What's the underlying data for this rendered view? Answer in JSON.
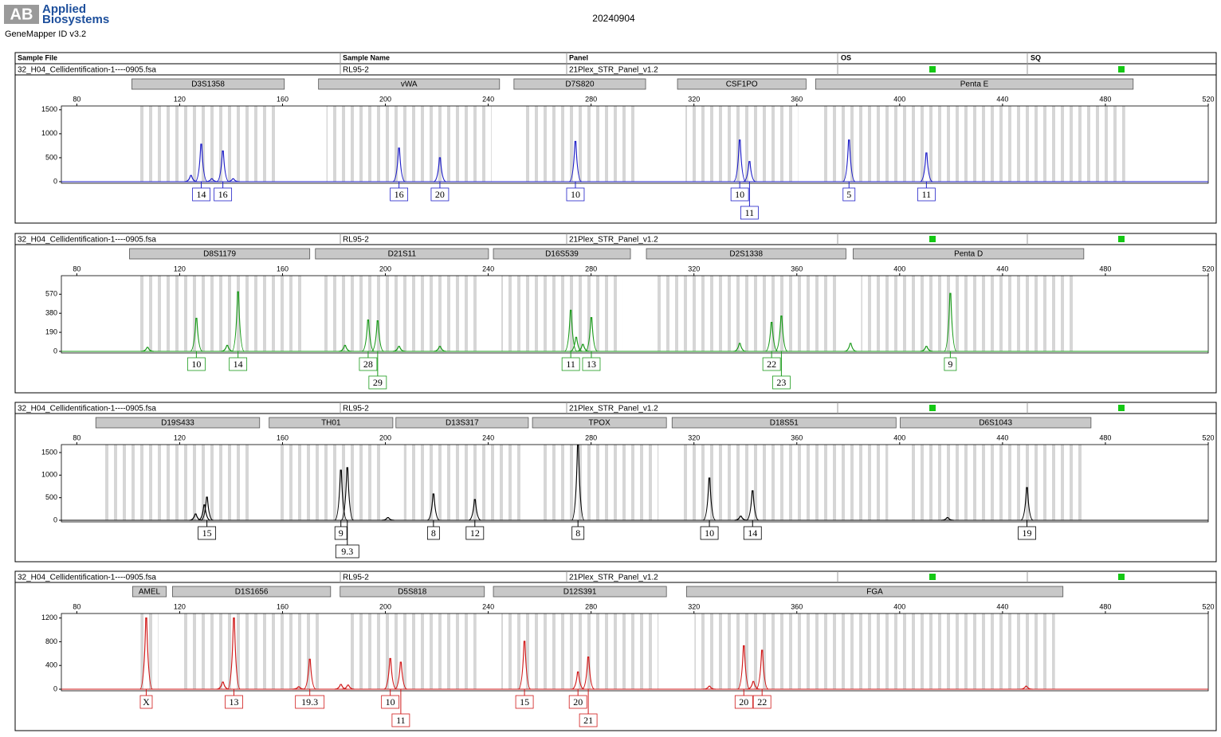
{
  "header": {
    "logo_mark": "AB",
    "logo": [
      "Applied",
      "Biosystems"
    ],
    "software": "GeneMapper ID v3.2",
    "date": "20240904",
    "columns": [
      "Sample File",
      "Sample Name",
      "Panel",
      "OS",
      "SQ"
    ]
  },
  "chart_data": [
    {
      "type": "line",
      "sample_file": "32_H04_Cellidentification-1----0905.fsa",
      "sample_name": "RL95-2",
      "panel": "21Plex_STR_Panel_v1.2",
      "loci": [
        {
          "name": "D3S1358",
          "start": 101.4,
          "end": 160.7
        },
        {
          "name": "vWA",
          "start": 174.0,
          "end": 244.4
        },
        {
          "name": "D7S820",
          "start": 250.0,
          "end": 301.2
        },
        {
          "name": "CSF1PO",
          "start": 313.6,
          "end": 363.6
        },
        {
          "name": "Penta E",
          "start": 367.3,
          "end": 490.8
        }
      ],
      "xlim": [
        74,
        520
      ],
      "xticks": [
        80,
        120,
        160,
        200,
        240,
        280,
        320,
        360,
        400,
        440,
        480,
        520
      ],
      "ylim": [
        0,
        1580
      ],
      "yticks": [
        0,
        500,
        1000,
        1500
      ],
      "series": [
        {
          "color": "#1f1fc8",
          "x": [
            124.4,
            128.4,
            132.5,
            136.8,
            140.8,
            205.3,
            221.2,
            273.9,
            337.8,
            341.6,
            380.3,
            410.4
          ],
          "values": [
            130,
            783,
            60,
            640,
            60,
            700,
            500,
            840,
            870,
            420,
            870,
            600
          ],
          "alleles": [
            null,
            "14",
            null,
            "16",
            null,
            "16",
            "20",
            "10",
            "10",
            "11",
            "5",
            "11"
          ]
        }
      ]
    },
    {
      "type": "line",
      "sample_file": "32_H04_Cellidentification-1----0905.fsa",
      "sample_name": "RL95-2",
      "panel": "21Plex_STR_Panel_v1.2",
      "loci": [
        {
          "name": "D8S1179",
          "start": 100.5,
          "end": 170.6
        },
        {
          "name": "D21S11",
          "start": 172.8,
          "end": 240.1
        },
        {
          "name": "D16S539",
          "start": 242.0,
          "end": 295.3
        },
        {
          "name": "D2S1338",
          "start": 301.5,
          "end": 379.1
        },
        {
          "name": "Penta D",
          "start": 381.9,
          "end": 471.6
        }
      ],
      "xlim": [
        74,
        520
      ],
      "xticks": [
        80,
        120,
        160,
        200,
        240,
        280,
        320,
        360,
        400,
        440,
        480,
        520
      ],
      "ylim": [
        0,
        755
      ],
      "yticks": [
        0,
        190,
        380,
        570
      ],
      "series": [
        {
          "color": "#1a9a1a",
          "x": [
            107.5,
            126.5,
            138.5,
            142.7,
            184.3,
            193.3,
            197.0,
            205.3,
            221.2,
            272.1,
            274.2,
            276.8,
            280.1,
            337.8,
            350.2,
            354.0,
            380.9,
            410.4,
            419.7
          ],
          "values": [
            40,
            330,
            60,
            594,
            60,
            313,
            305,
            50,
            50,
            410,
            140,
            70,
            337,
            80,
            289,
            353,
            80,
            50,
            578
          ],
          "alleles": [
            null,
            "10",
            null,
            "14",
            null,
            "28",
            "29",
            null,
            null,
            "11",
            null,
            null,
            "13",
            null,
            "22",
            "23",
            null,
            null,
            "9"
          ]
        }
      ]
    },
    {
      "type": "line",
      "sample_file": "32_H04_Cellidentification-1----0905.fsa",
      "sample_name": "RL95-2",
      "panel": "21Plex_STR_Panel_v1.2",
      "loci": [
        {
          "name": "D19S433",
          "start": 87.4,
          "end": 151.1
        },
        {
          "name": "TH01",
          "start": 154.8,
          "end": 202.9
        },
        {
          "name": "D13S317",
          "start": 204.1,
          "end": 255.6
        },
        {
          "name": "TPOX",
          "start": 257.2,
          "end": 309.3
        },
        {
          "name": "D18S51",
          "start": 311.5,
          "end": 398.6
        },
        {
          "name": "D6S1043",
          "start": 400.2,
          "end": 474.4
        }
      ],
      "xlim": [
        74,
        520
      ],
      "xticks": [
        80,
        120,
        160,
        200,
        240,
        280,
        320,
        360,
        400,
        440,
        480,
        520
      ],
      "ylim": [
        0,
        1676
      ],
      "yticks": [
        0,
        500,
        1000,
        1500
      ],
      "series": [
        {
          "color": "#000000",
          "x": [
            126.2,
            129.6,
            130.6,
            182.7,
            185.2,
            201.0,
            218.7,
            234.8,
            274.9,
            326.0,
            338.2,
            342.8,
            418.6,
            449.5
          ],
          "values": [
            140,
            340,
            512,
            1110,
            1165,
            60,
            582,
            459,
            1680,
            935,
            90,
            653,
            60,
            724
          ],
          "alleles": [
            null,
            null,
            "15",
            "9",
            "9.3",
            null,
            "8",
            "12",
            "8",
            "10",
            null,
            "14",
            null,
            "19"
          ]
        }
      ]
    },
    {
      "type": "line",
      "sample_file": "32_H04_Cellidentification-1----0905.fsa",
      "sample_name": "RL95-2",
      "panel": "21Plex_STR_Panel_v1.2",
      "loci": [
        {
          "name": "AMEL",
          "start": 101.7,
          "end": 114.8
        },
        {
          "name": "D1S1656",
          "start": 117.2,
          "end": 178.7
        },
        {
          "name": "D5S818",
          "start": 182.4,
          "end": 238.5
        },
        {
          "name": "D12S391",
          "start": 242.0,
          "end": 309.3
        },
        {
          "name": "FGA",
          "start": 317.1,
          "end": 463.5
        }
      ],
      "xlim": [
        74,
        520
      ],
      "xticks": [
        80,
        120,
        160,
        200,
        240,
        280,
        320,
        360,
        400,
        440,
        480,
        520
      ],
      "ylim": [
        0,
        1276
      ],
      "yticks": [
        0,
        400,
        800,
        1200
      ],
      "series": [
        {
          "color": "#d01818",
          "x": [
            107.0,
            136.8,
            141.1,
            166.3,
            170.6,
            182.7,
            185.5,
            201.9,
            206.0,
            254.1,
            274.9,
            278.9,
            326.0,
            339.4,
            343.1,
            346.5,
            449.2
          ],
          "values": [
            1200,
            120,
            1200,
            40,
            505,
            80,
            70,
            518,
            455,
            808,
            290,
            543,
            50,
            733,
            130,
            657,
            50
          ],
          "alleles": [
            "X",
            null,
            "13",
            null,
            "19.3",
            null,
            null,
            "10",
            "11",
            "15",
            "20",
            "21",
            null,
            "20",
            null,
            "22",
            null
          ]
        }
      ]
    }
  ]
}
